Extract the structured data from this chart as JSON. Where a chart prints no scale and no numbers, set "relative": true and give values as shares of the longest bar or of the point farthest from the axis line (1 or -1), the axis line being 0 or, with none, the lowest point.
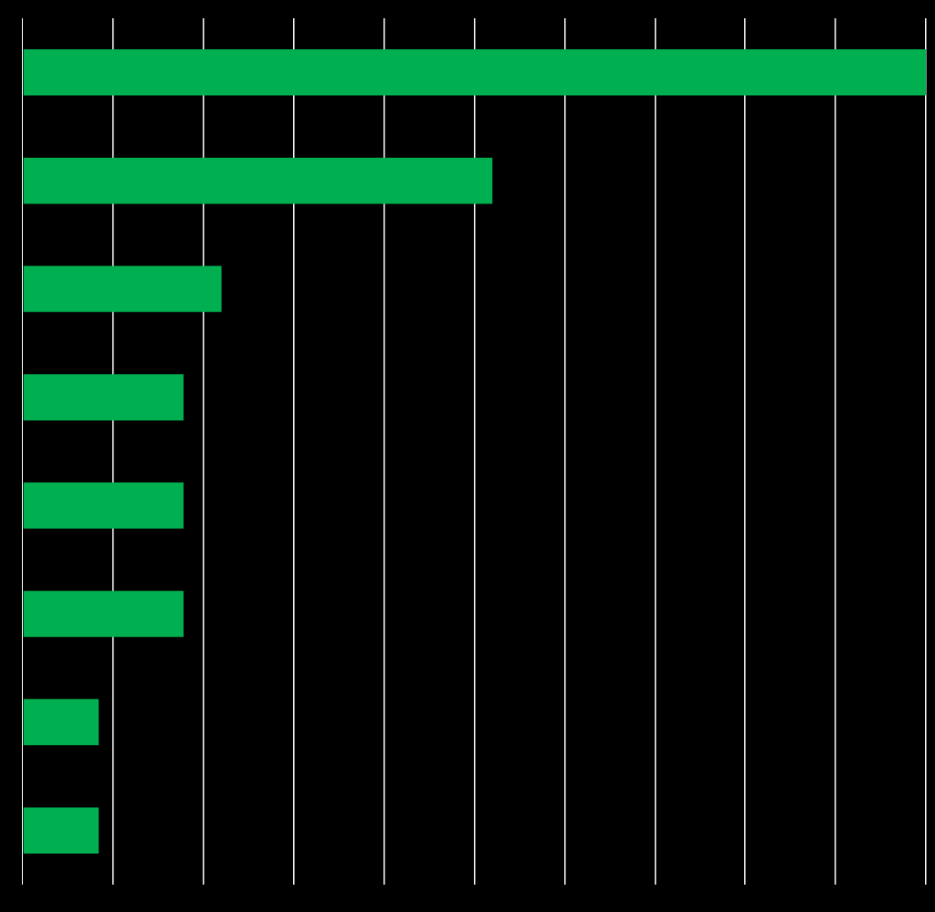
{
  "chart_data": {
    "type": "bar",
    "orientation": "horizontal",
    "relative": true,
    "grid": "x",
    "legend": false,
    "tick_labels": false,
    "categories": [
      null,
      null,
      null,
      null,
      null,
      null,
      null,
      null
    ],
    "series": [
      {
        "color": "#00b050",
        "values": [
          1,
          0.52,
          0.22,
          0.178,
          0.178,
          0.178,
          0.084,
          0.084
        ]
      }
    ]
  }
}
